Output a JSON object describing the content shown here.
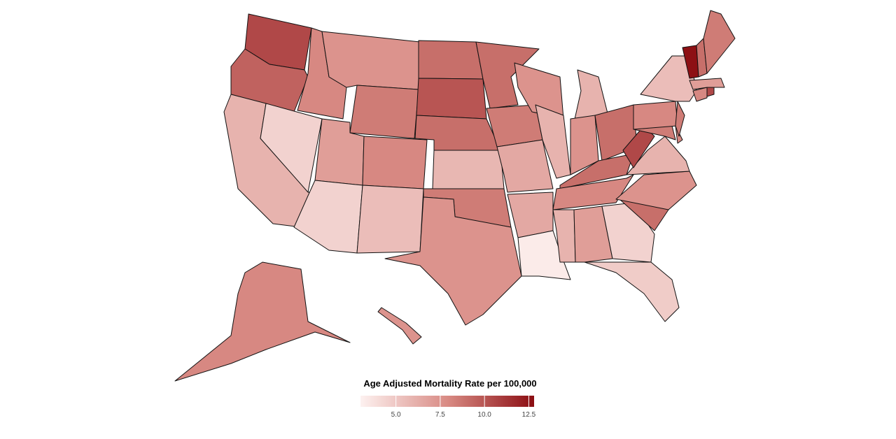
{
  "chart_data": {
    "type": "choropleth",
    "legend_title": "Age Adjusted Mortality Rate per 100,000",
    "values": [
      10.5,
      9.5,
      6.0,
      4.5,
      8.0,
      7.5,
      8.5,
      7.0,
      4.5,
      8.0,
      5.5,
      9.0,
      10.0,
      9.0,
      5.8,
      8.5,
      7.5,
      9.0,
      8.5,
      6.5,
      6.5,
      3.3,
      7.5,
      6.0,
      6.0,
      7.5,
      9.0,
      9.0,
      8.0,
      6.0,
      7.0,
      4.5,
      4.8,
      9.0,
      7.5,
      6.0,
      10.5,
      8.5,
      8.0,
      8.0,
      8.5,
      5.5,
      8.0,
      10.5,
      7.0,
      12.7,
      9.0,
      8.5,
      8.0,
      7.5
    ],
    "low_color": "#fdf1f0",
    "mid_color": "#d98b84",
    "high_color": "#8b0d12",
    "lim": [
      3,
      12.8
    ],
    "ticks": [
      {
        "value": 5,
        "label": "5.0"
      },
      {
        "value": 7.5,
        "label": "7.5"
      },
      {
        "value": 10,
        "label": "10.0"
      },
      {
        "value": 12.5,
        "label": "12.5"
      }
    ]
  }
}
